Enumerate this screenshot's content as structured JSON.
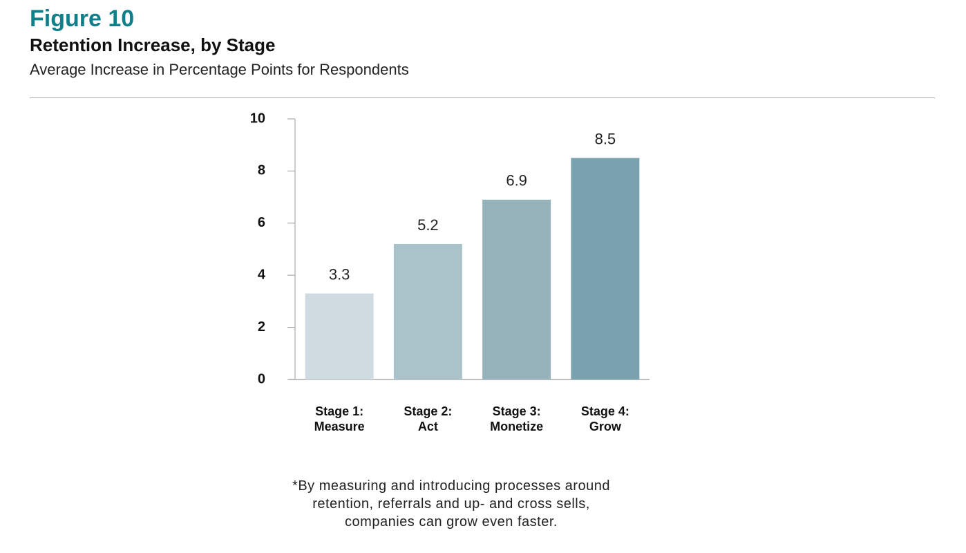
{
  "chart_data": {
    "type": "bar",
    "figure_label": "Figure 10",
    "title": "Retention Increase, by Stage",
    "subtitle": "Average Increase in Percentage Points for Respondents",
    "categories": [
      "Stage 1:\nMeasure",
      "Stage 2:\nAct",
      "Stage 3:\nMonetize",
      "Stage 4:\nGrow"
    ],
    "values": [
      3.3,
      5.2,
      6.9,
      8.5
    ],
    "colors": [
      "#cfdbe0",
      "#aac2c9",
      "#96b3bc",
      "#7aa1ae"
    ],
    "ylim": [
      0,
      10
    ],
    "yticks": [
      0,
      2,
      4,
      6,
      8,
      10
    ],
    "footnote": "*By measuring and introducing processes around\nretention, referrals and up- and cross sells,\ncompanies can grow even faster."
  }
}
